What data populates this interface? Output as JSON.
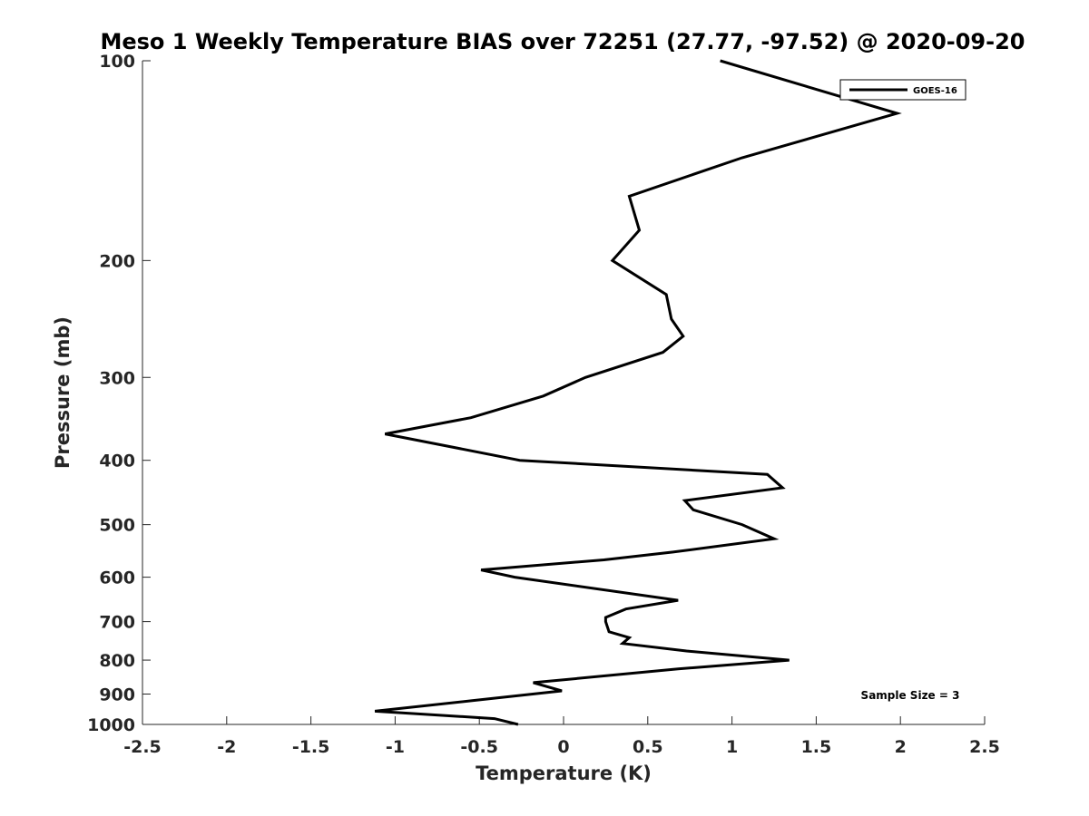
{
  "chart_data": {
    "type": "line",
    "title": "Meso 1 Weekly Temperature BIAS over 72251 (27.77, -97.52) @ 2020-09-20",
    "xlabel": "Temperature (K)",
    "ylabel": "Pressure (mb)",
    "xlim": [
      -2.5,
      2.5
    ],
    "ylim": [
      100,
      1000
    ],
    "y_scale": "log",
    "y_reversed": true,
    "x_ticks": [
      -2.5,
      -2,
      -1.5,
      -1,
      -0.5,
      0,
      0.5,
      1,
      1.5,
      2,
      2.5
    ],
    "x_tick_labels": [
      "-2.5",
      "-2",
      "-1.5",
      "-1",
      "-0.5",
      "0",
      "0.5",
      "1",
      "1.5",
      "2",
      "2.5"
    ],
    "y_ticks": [
      100,
      200,
      300,
      400,
      500,
      600,
      700,
      800,
      900,
      1000
    ],
    "y_tick_labels": [
      "100",
      "200",
      "300",
      "400",
      "500",
      "600",
      "700",
      "800",
      "900",
      "1000"
    ],
    "grid": false,
    "legend_position": "top-right",
    "annotation": "Sample Size = 3",
    "series": [
      {
        "name": "GOES-16",
        "color": "#000000",
        "points": [
          {
            "x": 0.93,
            "p": 100
          },
          {
            "x": 1.98,
            "p": 120
          },
          {
            "x": 1.06,
            "p": 140
          },
          {
            "x": 0.39,
            "p": 160
          },
          {
            "x": 0.45,
            "p": 180
          },
          {
            "x": 0.29,
            "p": 200
          },
          {
            "x": 0.61,
            "p": 225
          },
          {
            "x": 0.64,
            "p": 245
          },
          {
            "x": 0.71,
            "p": 260
          },
          {
            "x": 0.59,
            "p": 275
          },
          {
            "x": 0.13,
            "p": 300
          },
          {
            "x": -0.12,
            "p": 320
          },
          {
            "x": -0.55,
            "p": 345
          },
          {
            "x": -1.06,
            "p": 365
          },
          {
            "x": -0.26,
            "p": 400
          },
          {
            "x": 1.21,
            "p": 420
          },
          {
            "x": 1.3,
            "p": 440
          },
          {
            "x": 0.72,
            "p": 460
          },
          {
            "x": 0.77,
            "p": 475
          },
          {
            "x": 1.06,
            "p": 500
          },
          {
            "x": 1.25,
            "p": 525
          },
          {
            "x": 0.65,
            "p": 550
          },
          {
            "x": 0.24,
            "p": 565
          },
          {
            "x": -0.49,
            "p": 585
          },
          {
            "x": -0.29,
            "p": 600
          },
          {
            "x": 0.68,
            "p": 650
          },
          {
            "x": 0.37,
            "p": 670
          },
          {
            "x": 0.25,
            "p": 690
          },
          {
            "x": 0.25,
            "p": 700
          },
          {
            "x": 0.27,
            "p": 725
          },
          {
            "x": 0.39,
            "p": 740
          },
          {
            "x": 0.35,
            "p": 755
          },
          {
            "x": 0.73,
            "p": 775
          },
          {
            "x": 1.34,
            "p": 800
          },
          {
            "x": 0.68,
            "p": 825
          },
          {
            "x": -0.18,
            "p": 865
          },
          {
            "x": -0.01,
            "p": 890
          },
          {
            "x": -0.53,
            "p": 920
          },
          {
            "x": -1.12,
            "p": 955
          },
          {
            "x": -0.41,
            "p": 980
          },
          {
            "x": -0.27,
            "p": 1000
          }
        ]
      }
    ]
  }
}
